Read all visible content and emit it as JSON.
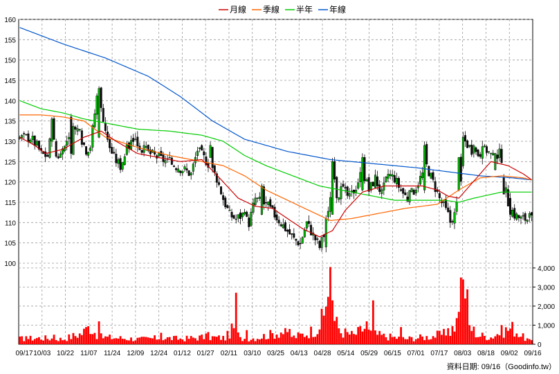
{
  "chart_data": {
    "type": "candlestick",
    "legend": [
      {
        "label": "月線",
        "color": "#cc0000"
      },
      {
        "label": "季線",
        "color": "#ff6600"
      },
      {
        "label": "半年",
        "color": "#00cc00"
      },
      {
        "label": "年線",
        "color": "#0055cc"
      }
    ],
    "price_axis": {
      "ylim": [
        100,
        160
      ],
      "ticks": [
        100,
        105,
        110,
        115,
        120,
        125,
        130,
        135,
        140,
        145,
        150,
        155,
        160
      ]
    },
    "volume_axis": {
      "ylim": [
        0,
        4000
      ],
      "ticks": [
        0,
        1000,
        2000,
        3000,
        4000
      ],
      "tick_labels": [
        "0",
        "1,000",
        "2,000",
        "3,000",
        "4,000"
      ]
    },
    "x_labels": [
      "09/17",
      "10/03",
      "10/22",
      "11/07",
      "11/24",
      "12/09",
      "12/24",
      "01/12",
      "01/27",
      "02/11",
      "03/10",
      "03/25",
      "04/13",
      "04/28",
      "05/14",
      "05/29",
      "06/15",
      "07/01",
      "07/17",
      "08/03",
      "08/18",
      "09/02",
      "09/16"
    ],
    "n_days": 240,
    "close_anchors": [
      [
        0,
        131
      ],
      [
        5,
        131
      ],
      [
        8,
        129
      ],
      [
        10,
        127
      ],
      [
        13,
        126.5
      ],
      [
        15,
        133
      ],
      [
        17,
        126.5
      ],
      [
        20,
        127
      ],
      [
        23,
        132
      ],
      [
        27,
        133
      ],
      [
        31,
        128
      ],
      [
        33,
        129
      ],
      [
        36,
        141
      ],
      [
        39,
        136
      ],
      [
        41,
        130
      ],
      [
        44,
        126
      ],
      [
        47,
        124
      ],
      [
        50,
        128
      ],
      [
        53,
        131
      ],
      [
        57,
        128
      ],
      [
        61,
        127
      ],
      [
        65,
        126
      ],
      [
        69,
        125
      ],
      [
        73,
        124
      ],
      [
        77,
        123
      ],
      [
        80,
        122
      ],
      [
        83,
        128
      ],
      [
        86,
        126
      ],
      [
        89,
        124
      ],
      [
        92,
        121
      ],
      [
        95,
        116
      ],
      [
        98,
        112
      ],
      [
        101,
        111
      ],
      [
        104,
        112
      ],
      [
        107,
        110
      ],
      [
        110,
        116
      ],
      [
        113,
        115
      ],
      [
        116,
        114
      ],
      [
        119,
        112
      ],
      [
        122,
        110
      ],
      [
        125,
        108
      ],
      [
        128,
        106
      ],
      [
        131,
        105
      ],
      [
        134,
        110
      ],
      [
        137,
        107
      ],
      [
        140,
        104
      ],
      [
        142,
        107
      ],
      [
        144,
        112
      ],
      [
        146,
        122
      ],
      [
        148,
        117
      ],
      [
        151,
        118
      ],
      [
        154,
        116
      ],
      [
        157,
        119
      ],
      [
        160,
        123
      ],
      [
        163,
        118
      ],
      [
        166,
        121
      ],
      [
        169,
        117
      ],
      [
        172,
        122
      ],
      [
        175,
        121
      ],
      [
        178,
        118
      ],
      [
        181,
        116
      ],
      [
        184,
        118
      ],
      [
        187,
        121
      ],
      [
        190,
        124
      ],
      [
        193,
        120
      ],
      [
        196,
        116
      ],
      [
        199,
        113
      ],
      [
        201,
        111
      ],
      [
        203,
        112
      ],
      [
        206,
        119
      ],
      [
        208,
        130
      ],
      [
        211,
        128
      ],
      [
        214,
        127
      ],
      [
        218,
        128
      ],
      [
        221,
        126
      ],
      [
        224,
        127
      ],
      [
        226,
        120
      ],
      [
        228,
        115
      ],
      [
        231,
        112
      ],
      [
        234,
        111
      ],
      [
        237,
        111
      ],
      [
        239,
        111
      ]
    ],
    "volume_anchors": [
      [
        0,
        300
      ],
      [
        10,
        350
      ],
      [
        20,
        280
      ],
      [
        29,
        600
      ],
      [
        33,
        1000
      ],
      [
        37,
        400
      ],
      [
        46,
        350
      ],
      [
        56,
        280
      ],
      [
        66,
        350
      ],
      [
        76,
        300
      ],
      [
        86,
        400
      ],
      [
        96,
        350
      ],
      [
        100,
        900
      ],
      [
        103,
        300
      ],
      [
        110,
        350
      ],
      [
        116,
        500
      ],
      [
        122,
        700
      ],
      [
        128,
        400
      ],
      [
        134,
        600
      ],
      [
        139,
        900
      ],
      [
        142,
        1500
      ],
      [
        144,
        3200
      ],
      [
        146,
        1500
      ],
      [
        150,
        700
      ],
      [
        156,
        500
      ],
      [
        161,
        900
      ],
      [
        164,
        600
      ],
      [
        170,
        450
      ],
      [
        180,
        300
      ],
      [
        190,
        400
      ],
      [
        200,
        600
      ],
      [
        204,
        1200
      ],
      [
        206,
        1500
      ],
      [
        208,
        3400
      ],
      [
        210,
        1000
      ],
      [
        214,
        500
      ],
      [
        220,
        400
      ],
      [
        225,
        700
      ],
      [
        230,
        900
      ],
      [
        235,
        400
      ],
      [
        239,
        150
      ]
    ],
    "volume_spikes": [
      [
        3,
        420
      ],
      [
        16,
        500
      ],
      [
        31,
        900
      ],
      [
        37,
        1200
      ],
      [
        66,
        600
      ],
      [
        88,
        640
      ],
      [
        101,
        2700
      ],
      [
        106,
        740
      ],
      [
        126,
        800
      ],
      [
        145,
        4050
      ],
      [
        146,
        2300
      ],
      [
        162,
        1200
      ],
      [
        165,
        2300
      ],
      [
        178,
        900
      ],
      [
        200,
        840
      ],
      [
        205,
        1700
      ],
      [
        206,
        3500
      ],
      [
        207,
        3400
      ]
    ],
    "wide_candles": [
      [
        15,
        130,
        135.5,
        "up"
      ],
      [
        24,
        136,
        127,
        "down"
      ],
      [
        37,
        131,
        143,
        "up"
      ],
      [
        89,
        126,
        129,
        "up"
      ],
      [
        113,
        112,
        119,
        "up"
      ],
      [
        143,
        104,
        111,
        "up"
      ],
      [
        146,
        112,
        125,
        "up"
      ],
      [
        160,
        118,
        126,
        "up"
      ],
      [
        189,
        118,
        129,
        "up"
      ],
      [
        201,
        113,
        110,
        "down"
      ],
      [
        205,
        118,
        126,
        "up"
      ],
      [
        207,
        124,
        131,
        "up"
      ],
      [
        222,
        123,
        127,
        "up"
      ],
      [
        226,
        121,
        117,
        "down"
      ],
      [
        229,
        116,
        112,
        "down"
      ]
    ],
    "ma_year_anchors": [
      [
        0,
        158
      ],
      [
        10,
        156
      ],
      [
        20,
        154
      ],
      [
        40,
        150.5
      ],
      [
        60,
        146
      ],
      [
        75,
        141
      ],
      [
        90,
        135
      ],
      [
        105,
        130.5
      ],
      [
        125,
        127.5
      ],
      [
        145,
        125.5
      ],
      [
        165,
        124.5
      ],
      [
        185,
        123.5
      ],
      [
        200,
        122.5
      ],
      [
        215,
        121.5
      ],
      [
        230,
        121
      ],
      [
        239,
        120.5
      ]
    ],
    "ma_half_anchors": [
      [
        0,
        140
      ],
      [
        10,
        138
      ],
      [
        20,
        137
      ],
      [
        30,
        135.5
      ],
      [
        40,
        134.5
      ],
      [
        55,
        133
      ],
      [
        70,
        132.5
      ],
      [
        85,
        131.5
      ],
      [
        95,
        130
      ],
      [
        105,
        126.5
      ],
      [
        115,
        124
      ],
      [
        130,
        121
      ],
      [
        140,
        119
      ],
      [
        150,
        118
      ],
      [
        160,
        117
      ],
      [
        175,
        115.5
      ],
      [
        190,
        115.5
      ],
      [
        198,
        115.5
      ],
      [
        205,
        115
      ],
      [
        212,
        116
      ],
      [
        225,
        117.5
      ],
      [
        239,
        117.5
      ]
    ],
    "ma_quarter_anchors": [
      [
        0,
        136.5
      ],
      [
        10,
        136.5
      ],
      [
        20,
        136
      ],
      [
        30,
        135
      ],
      [
        40,
        131
      ],
      [
        55,
        128.5
      ],
      [
        70,
        126.5
      ],
      [
        85,
        125
      ],
      [
        95,
        124
      ],
      [
        105,
        121.5
      ],
      [
        115,
        118
      ],
      [
        125,
        115.5
      ],
      [
        135,
        113
      ],
      [
        145,
        110.5
      ],
      [
        155,
        111
      ],
      [
        165,
        112
      ],
      [
        180,
        113.5
      ],
      [
        195,
        114.5
      ],
      [
        205,
        118
      ],
      [
        215,
        121
      ],
      [
        225,
        121.5
      ],
      [
        235,
        121
      ],
      [
        239,
        120.5
      ]
    ],
    "ma_month_anchors": [
      [
        0,
        131
      ],
      [
        7,
        129
      ],
      [
        12,
        127
      ],
      [
        20,
        128
      ],
      [
        30,
        131
      ],
      [
        38,
        132.5
      ],
      [
        45,
        130
      ],
      [
        55,
        127
      ],
      [
        65,
        126
      ],
      [
        75,
        125
      ],
      [
        85,
        125.5
      ],
      [
        95,
        120
      ],
      [
        102,
        116
      ],
      [
        110,
        114
      ],
      [
        118,
        113.5
      ],
      [
        125,
        111
      ],
      [
        132,
        108.5
      ],
      [
        140,
        106.5
      ],
      [
        146,
        108
      ],
      [
        152,
        113
      ],
      [
        160,
        117.5
      ],
      [
        170,
        119
      ],
      [
        180,
        119
      ],
      [
        188,
        119
      ],
      [
        195,
        118
      ],
      [
        200,
        116.5
      ],
      [
        205,
        116
      ],
      [
        210,
        119
      ],
      [
        215,
        122
      ],
      [
        220,
        125
      ],
      [
        228,
        124
      ],
      [
        235,
        122
      ],
      [
        239,
        120.5
      ]
    ]
  },
  "credit": "資料日期: 09/16（Goodinfo.tw）"
}
